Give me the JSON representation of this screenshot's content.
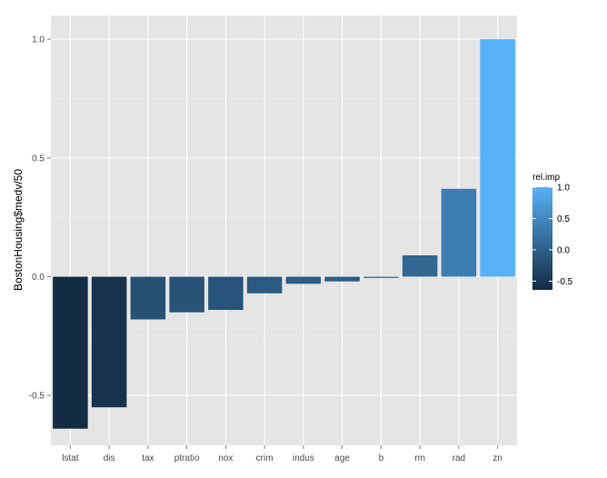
{
  "chart_data": {
    "type": "bar",
    "categories": [
      "lstat",
      "dis",
      "tax",
      "ptratio",
      "nox",
      "crim",
      "indus",
      "age",
      "b",
      "rm",
      "rad",
      "zn"
    ],
    "values": [
      -0.64,
      -0.55,
      -0.18,
      -0.15,
      -0.14,
      -0.07,
      -0.03,
      -0.02,
      -0.005,
      0.09,
      0.37,
      1.0
    ],
    "xlabel": "",
    "ylabel": "BostonHousing$medv/50",
    "ylim": [
      -0.71,
      1.1
    ],
    "yticks": [
      -0.5,
      0.0,
      0.5,
      1.0
    ],
    "ytick_labels": [
      "-0.5",
      "0.0",
      "0.5",
      "1.0"
    ],
    "grid": true,
    "legend": {
      "title": "rel.imp",
      "placement": "right",
      "ticks": [
        -0.5,
        0.0,
        0.5,
        1.0
      ],
      "tick_labels": [
        "-0.5",
        "0.0",
        "0.5",
        "1.0"
      ],
      "range": [
        -0.64,
        1.0
      ]
    },
    "colors": {
      "low": "#132B43",
      "high": "#56B1F7",
      "panel_background": "#E5E5E5",
      "grid_major": "#FFFFFF",
      "grid_minor": "#F2F2F2"
    }
  }
}
